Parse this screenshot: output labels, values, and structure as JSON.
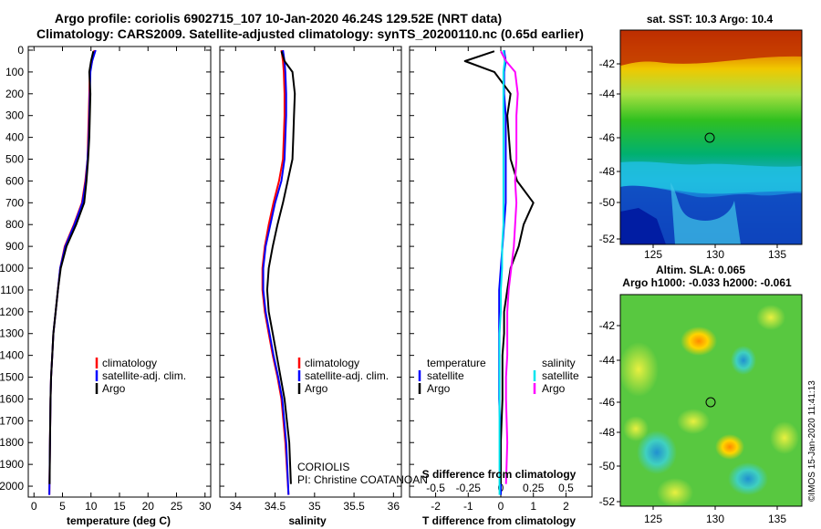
{
  "header": {
    "line1": "Argo profile: coriolis 6902715_107 10-Jan-2020 46.24S 129.52E (NRT data)",
    "line2": "Climatology: CARS2009. Satellite-adjusted climatology: synTS_20200110.nc (0.65d earlier)"
  },
  "depth_ticks": [
    0,
    100,
    200,
    300,
    400,
    500,
    600,
    700,
    800,
    900,
    1000,
    1100,
    1200,
    1300,
    1400,
    1500,
    1600,
    1700,
    1800,
    1900,
    2000
  ],
  "colors": {
    "climatology": "#ff0000",
    "satellite": "#0000ff",
    "argo": "#000000",
    "satellite_t": "#00e5ee",
    "salinity_diff": "#ff00ff"
  },
  "panels": {
    "temperature": {
      "xlabel": "temperature (deg C)",
      "xticks": [
        "0",
        "5",
        "10",
        "15",
        "20",
        "25",
        "30"
      ],
      "legend": [
        "climatology",
        "satellite-adj. clim.",
        "Argo"
      ]
    },
    "salinity": {
      "xlabel": "salinity",
      "xticks": [
        "34",
        "34.5",
        "35",
        "35.5",
        "36"
      ],
      "legend": [
        "climatology",
        "satellite-adj. clim.",
        "Argo"
      ],
      "note1": "CORIOLIS",
      "note2": "PI: Christine COATANOAN"
    },
    "difference": {
      "xlabel": "T difference from climatology",
      "top_label": "S difference from climatology",
      "xticks": [
        "-2",
        "-1",
        "0",
        "1",
        "2"
      ],
      "sticks": [
        "-0.5",
        "-0.25",
        "0",
        "0.25",
        "0.5"
      ],
      "legend_t_title": "temperature",
      "legend_s_title": "salinity",
      "legend": [
        "satellite",
        "Argo",
        "satellite",
        "Argo"
      ]
    }
  },
  "maps": {
    "sst_title": "sat. SST: 10.3 Argo: 10.4",
    "sla_title1": "Altim. SLA: 0.065",
    "sla_title2": "Argo h1000: -0.033 h2000: -0.061",
    "lat_ticks": [
      "-42",
      "-44",
      "-46",
      "-48",
      "-50",
      "-52"
    ],
    "lon_ticks": [
      "125",
      "130",
      "135"
    ],
    "credit": "©IMOS 15-Jan-2020 11:41:13"
  },
  "chart_data": [
    {
      "type": "line",
      "title": "",
      "xlabel": "temperature (deg C)",
      "ylabel": "",
      "xlim": [
        -1,
        31
      ],
      "ylim": [
        2050,
        0
      ],
      "series": [
        {
          "name": "climatology",
          "x": [
            10.6,
            10.2,
            9.8,
            9.7,
            9.6,
            9.5,
            9.4,
            9.0,
            8.4,
            7.0,
            5.4,
            4.6,
            4.2,
            3.8,
            3.4,
            3.2,
            3.0,
            2.9,
            2.8,
            2.7
          ],
          "y": [
            0,
            50,
            100,
            200,
            300,
            400,
            500,
            600,
            700,
            800,
            900,
            1000,
            1100,
            1200,
            1300,
            1400,
            1500,
            1600,
            1800,
            2040
          ]
        },
        {
          "name": "satellite-adj. clim.",
          "x": [
            10.8,
            10.2,
            9.9,
            9.8,
            9.7,
            9.6,
            9.4,
            9.1,
            8.5,
            7.1,
            5.5,
            4.6,
            4.2,
            3.8,
            3.4,
            3.2,
            3.0,
            2.9,
            2.8,
            2.7
          ],
          "y": [
            0,
            50,
            100,
            200,
            300,
            400,
            500,
            600,
            700,
            800,
            900,
            1000,
            1100,
            1200,
            1300,
            1400,
            1500,
            1600,
            1800,
            2040
          ]
        },
        {
          "name": "Argo",
          "x": [
            10.4,
            10.0,
            9.7,
            9.9,
            9.8,
            9.7,
            9.5,
            9.2,
            8.8,
            7.4,
            5.7,
            4.7,
            4.2,
            3.8,
            3.4,
            3.2,
            3.0,
            2.9,
            2.8,
            2.75
          ],
          "y": [
            5,
            50,
            100,
            200,
            300,
            400,
            500,
            600,
            700,
            800,
            900,
            1000,
            1100,
            1200,
            1300,
            1400,
            1500,
            1600,
            1800,
            1990
          ]
        }
      ]
    },
    {
      "type": "line",
      "title": "",
      "xlabel": "salinity",
      "ylabel": "",
      "xlim": [
        33.8,
        36.1
      ],
      "ylim": [
        2050,
        0
      ],
      "series": [
        {
          "name": "climatology",
          "x": [
            34.58,
            34.6,
            34.61,
            34.62,
            34.62,
            34.61,
            34.6,
            34.55,
            34.48,
            34.42,
            34.37,
            34.34,
            34.34,
            34.37,
            34.42,
            34.47,
            34.53,
            34.58,
            34.63,
            34.67
          ],
          "y": [
            0,
            50,
            100,
            200,
            300,
            400,
            500,
            600,
            700,
            800,
            900,
            1000,
            1100,
            1200,
            1300,
            1400,
            1500,
            1600,
            1800,
            2040
          ]
        },
        {
          "name": "satellite-adj. clim.",
          "x": [
            34.6,
            34.62,
            34.63,
            34.64,
            34.64,
            34.63,
            34.62,
            34.58,
            34.5,
            34.44,
            34.38,
            34.35,
            34.35,
            34.38,
            34.43,
            34.48,
            34.54,
            34.59,
            34.64,
            34.67
          ],
          "y": [
            0,
            50,
            100,
            200,
            300,
            400,
            500,
            600,
            700,
            800,
            900,
            1000,
            1100,
            1200,
            1300,
            1400,
            1500,
            1600,
            1800,
            2040
          ]
        },
        {
          "name": "Argo",
          "x": [
            34.58,
            34.62,
            34.72,
            34.75,
            34.74,
            34.73,
            34.72,
            34.66,
            34.6,
            34.53,
            34.47,
            34.42,
            34.4,
            34.42,
            34.47,
            34.52,
            34.57,
            34.62,
            34.68,
            34.7
          ],
          "y": [
            5,
            50,
            100,
            200,
            300,
            400,
            500,
            600,
            700,
            800,
            900,
            1000,
            1100,
            1200,
            1300,
            1400,
            1500,
            1600,
            1800,
            1990
          ]
        }
      ]
    },
    {
      "type": "line",
      "title": "",
      "xlabel": "T difference from climatology",
      "ylabel": "",
      "xlim": [
        -2.8,
        2.8
      ],
      "ylim": [
        2050,
        0
      ],
      "series": [
        {
          "name": "satellite",
          "x": [
            0.1,
            0.15,
            0.1,
            0.1,
            0.15,
            0.15,
            0.15,
            0.15,
            0.15,
            0.1,
            0.05,
            0,
            -0.05,
            -0.05,
            -0.05,
            -0.05,
            -0.05,
            -0.05,
            0,
            0
          ],
          "y": [
            0,
            50,
            100,
            200,
            300,
            400,
            500,
            600,
            700,
            800,
            900,
            1000,
            1100,
            1200,
            1300,
            1400,
            1500,
            1600,
            1800,
            2040
          ]
        },
        {
          "name": "Argo",
          "x": [
            -0.2,
            -1.1,
            -0.2,
            0.3,
            0.2,
            0.25,
            0.3,
            0.5,
            1.0,
            0.7,
            0.55,
            0.3,
            0.2,
            0.1,
            0.1,
            0.05,
            0.05,
            0.05,
            0,
            0
          ],
          "y": [
            5,
            50,
            100,
            200,
            300,
            400,
            500,
            600,
            700,
            800,
            900,
            1000,
            1100,
            1200,
            1300,
            1400,
            1500,
            1600,
            1800,
            1990
          ]
        }
      ]
    },
    {
      "type": "line",
      "title": "",
      "xlabel": "S difference from climatology",
      "ylabel": "",
      "xlim": [
        -0.7,
        0.7
      ],
      "ylim": [
        2050,
        0
      ],
      "series": [
        {
          "name": "satellite",
          "x": [
            0.02,
            0.03,
            0.02,
            0.02,
            0.02,
            0.02,
            0.02,
            0.02,
            0.02,
            0.02,
            0.01,
            0.01,
            0,
            0,
            -0.01,
            -0.01,
            -0.01,
            -0.01,
            -0.01,
            -0.01
          ],
          "y": [
            0,
            50,
            100,
            200,
            300,
            400,
            500,
            600,
            700,
            800,
            900,
            1000,
            1100,
            1200,
            1300,
            1400,
            1500,
            1600,
            1800,
            2040
          ]
        },
        {
          "name": "Argo",
          "x": [
            0,
            0.04,
            0.11,
            0.13,
            0.12,
            0.12,
            0.12,
            0.11,
            0.12,
            0.11,
            0.1,
            0.08,
            0.06,
            0.05,
            0.05,
            0.05,
            0.04,
            0.04,
            0.05,
            0.04
          ],
          "y": [
            5,
            50,
            100,
            200,
            300,
            400,
            500,
            600,
            700,
            800,
            900,
            1000,
            1100,
            1200,
            1300,
            1400,
            1500,
            1600,
            1800,
            1990
          ]
        }
      ]
    }
  ]
}
